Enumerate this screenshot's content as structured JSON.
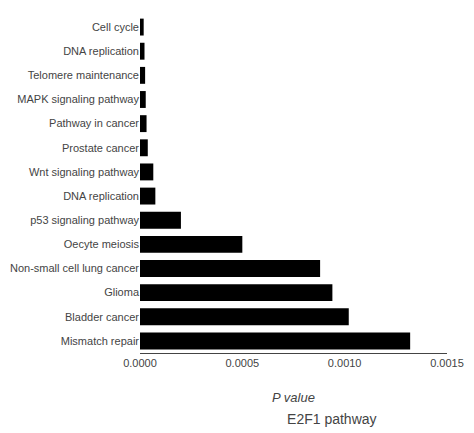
{
  "chart_data": {
    "type": "bar",
    "orientation": "horizontal",
    "title": "E2F1 pathway",
    "xlabel": "P value",
    "categories": [
      "Cell cycle",
      "DNA replication",
      "Telomere maintenance",
      "MAPK signaling pathway",
      "Pathway in cancer",
      "Prostate cancer",
      "Wnt signaling pathway",
      "DNA replication",
      "p53 signaling pathway",
      "Oecyte meiosis",
      "Non-small cell lung cancer",
      "Glioma",
      "Bladder cancer",
      "Mismatch repair"
    ],
    "values": [
      1.8e-05,
      2.2e-05,
      2.5e-05,
      2.8e-05,
      3.2e-05,
      3.8e-05,
      6.5e-05,
      7.5e-05,
      0.0002,
      0.0005,
      0.00088,
      0.00094,
      0.00102,
      0.00132
    ],
    "color": "#000000",
    "xlim": [
      0,
      0.0015
    ],
    "xticks": [
      {
        "value": 0,
        "label": "0.0000"
      },
      {
        "value": 0.0005,
        "label": "0.0005"
      },
      {
        "value": 0.001,
        "label": "0.0010"
      },
      {
        "value": 0.0015,
        "label": "0.0015"
      }
    ],
    "grid": false
  }
}
